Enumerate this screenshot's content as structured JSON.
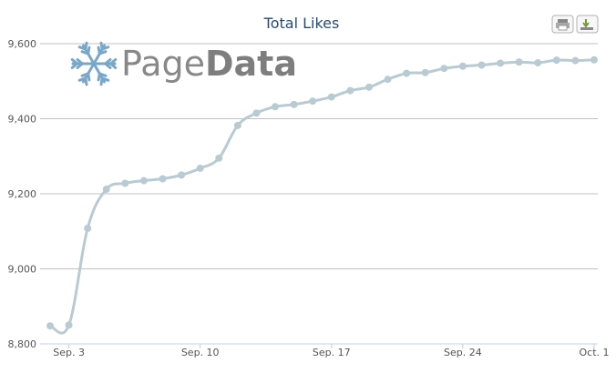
{
  "chart_data": {
    "type": "line",
    "title": "Total Likes",
    "xlabel": "",
    "ylabel": "",
    "ylim": [
      8800,
      9600
    ],
    "y_ticks": [
      "8,800",
      "9,000",
      "9,200",
      "9,400",
      "9,600"
    ],
    "x_ticks": [
      {
        "label": "Sep. 3",
        "index": 1
      },
      {
        "label": "Sep. 10",
        "index": 8
      },
      {
        "label": "Sep. 17",
        "index": 15
      },
      {
        "label": "Sep. 24",
        "index": 22
      },
      {
        "label": "Oct. 1",
        "index": 29
      }
    ],
    "grid": true,
    "series": [
      {
        "color": "#b9cad3",
        "values": [
          8848,
          8850,
          9108,
          9212,
          9228,
          9235,
          9240,
          9250,
          9268,
          9295,
          9382,
          9415,
          9432,
          9438,
          9447,
          9458,
          9475,
          9484,
          9505,
          9521,
          9523,
          9534,
          9540,
          9543,
          9548,
          9551,
          9549,
          9556,
          9555,
          9557
        ]
      }
    ]
  },
  "logo": {
    "part1": "Page",
    "part2": "Data",
    "color": "#7aa7c7"
  },
  "buttons": {
    "print": "print-icon",
    "export": "download-icon"
  }
}
